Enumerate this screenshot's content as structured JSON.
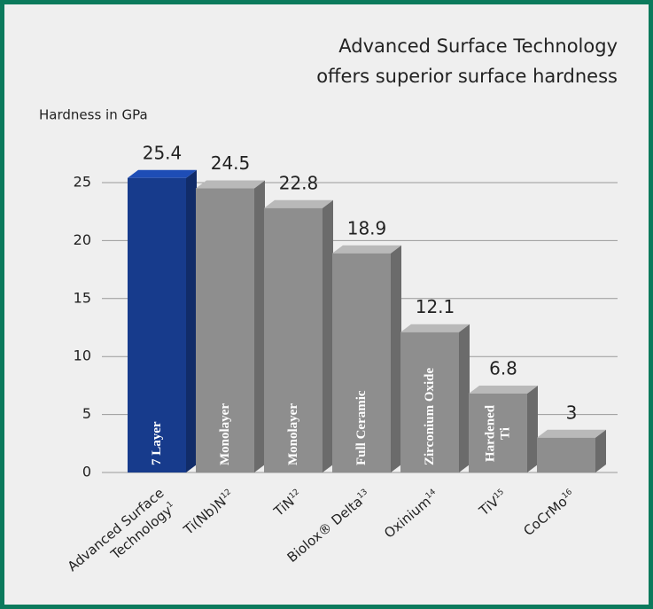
{
  "chart_data": {
    "type": "bar3d",
    "title": [
      "Advanced Surface Technology",
      "offers superior surface hardness"
    ],
    "y_label": "Hardness in GPa",
    "categories": [
      "Advanced Surface Technology",
      "Ti(Nb)N",
      "TiN",
      "Biolox® Delta",
      "Oxinium",
      "TiV",
      "CoCrMo"
    ],
    "category_notes": [
      "1",
      "12",
      "12",
      "13",
      "14",
      "15",
      "16"
    ],
    "values": [
      25.4,
      24.5,
      22.8,
      18.9,
      12.1,
      6.8,
      3
    ],
    "bar_labels": [
      "7 Layer",
      "Monolayer",
      "Monolayer",
      "Full Ceramic",
      "Zirconium Oxide",
      "Hardened Ti",
      null
    ],
    "colors": [
      "#173b8c",
      "#8e8e8e",
      "#8e8e8e",
      "#8e8e8e",
      "#8e8e8e",
      "#8e8e8e",
      "#8e8e8e"
    ],
    "ylim": [
      0,
      25
    ],
    "yticks": [
      0,
      5,
      10,
      15,
      20,
      25
    ],
    "grid": true
  }
}
